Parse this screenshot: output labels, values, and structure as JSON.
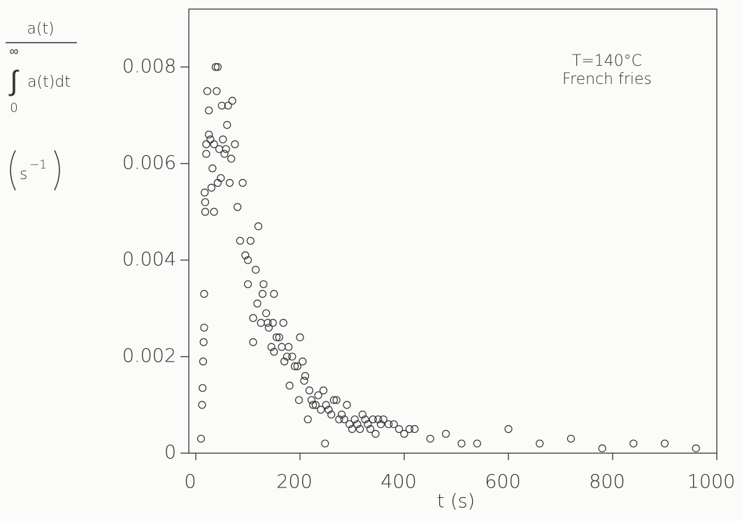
{
  "chart_data": {
    "type": "scatter",
    "y_label": {
      "numerator": "a(t)",
      "upper_limit": "∞",
      "integral_sign": "∫",
      "denominator": "a(t)dt",
      "lower_limit": "0",
      "unit": "s",
      "unit_exponent": "−1"
    },
    "x_label": "t  (s)",
    "annotations": [
      "T=140°C",
      "French fries"
    ],
    "xlim": [
      0,
      1000
    ],
    "xticks": [
      0,
      200,
      400,
      600,
      800,
      1000
    ],
    "ylim": [
      0,
      0.0092
    ],
    "yticks": [
      0,
      0.002,
      0.004,
      0.006,
      0.008
    ],
    "color": "#333333",
    "x": [
      10,
      12,
      13,
      14,
      15,
      16,
      16,
      18,
      18,
      17,
      20,
      20,
      22,
      25,
      25,
      28,
      30,
      32,
      35,
      35,
      38,
      40,
      42,
      42,
      45,
      48,
      50,
      52,
      55,
      58,
      60,
      62,
      65,
      68,
      70,
      75,
      80,
      85,
      90,
      95,
      100,
      100,
      105,
      110,
      110,
      115,
      118,
      120,
      125,
      128,
      130,
      135,
      138,
      140,
      145,
      148,
      150,
      150,
      155,
      160,
      165,
      168,
      170,
      175,
      178,
      180,
      185,
      190,
      195,
      198,
      200,
      205,
      208,
      210,
      215,
      218,
      222,
      225,
      230,
      235,
      240,
      245,
      248,
      250,
      255,
      260,
      265,
      270,
      275,
      280,
      285,
      290,
      295,
      300,
      305,
      310,
      315,
      320,
      325,
      330,
      335,
      340,
      345,
      350,
      355,
      360,
      370,
      380,
      390,
      400,
      410,
      420,
      450,
      480,
      510,
      540,
      600,
      660,
      720,
      780,
      840,
      900,
      960
    ],
    "values": [
      0.0003,
      0.001,
      0.00135,
      0.0019,
      0.0023,
      0.0026,
      0.0033,
      0.005,
      0.0052,
      0.0054,
      0.0062,
      0.0064,
      0.0075,
      0.0066,
      0.0071,
      0.0065,
      0.0055,
      0.0059,
      0.005,
      0.0064,
      0.008,
      0.0075,
      0.008,
      0.0056,
      0.0063,
      0.0057,
      0.0072,
      0.0065,
      0.0062,
      0.0063,
      0.0068,
      0.0072,
      0.0056,
      0.0061,
      0.0073,
      0.0064,
      0.0051,
      0.0044,
      0.0056,
      0.0041,
      0.0035,
      0.004,
      0.0044,
      0.0023,
      0.0028,
      0.0038,
      0.0031,
      0.0047,
      0.0027,
      0.0033,
      0.0035,
      0.0029,
      0.0027,
      0.0026,
      0.0022,
      0.0027,
      0.0033,
      0.0021,
      0.0024,
      0.0024,
      0.0022,
      0.0027,
      0.0019,
      0.002,
      0.0022,
      0.0014,
      0.002,
      0.0018,
      0.0018,
      0.0011,
      0.0024,
      0.0019,
      0.0015,
      0.0016,
      0.0007,
      0.0013,
      0.0011,
      0.001,
      0.001,
      0.0012,
      0.0009,
      0.0013,
      0.0002,
      0.001,
      0.0009,
      0.0008,
      0.0011,
      0.0011,
      0.0007,
      0.0008,
      0.0007,
      0.001,
      0.0006,
      0.0005,
      0.0007,
      0.0006,
      0.0005,
      0.0008,
      0.0007,
      0.0006,
      0.0005,
      0.0007,
      0.0004,
      0.0007,
      0.0006,
      0.0007,
      0.0006,
      0.0006,
      0.0005,
      0.0004,
      0.0005,
      0.0005,
      0.0003,
      0.0004,
      0.0002,
      0.0002,
      0.0005,
      0.0002,
      0.0003,
      0.0001,
      0.0002,
      0.0002,
      0.0001
    ]
  }
}
